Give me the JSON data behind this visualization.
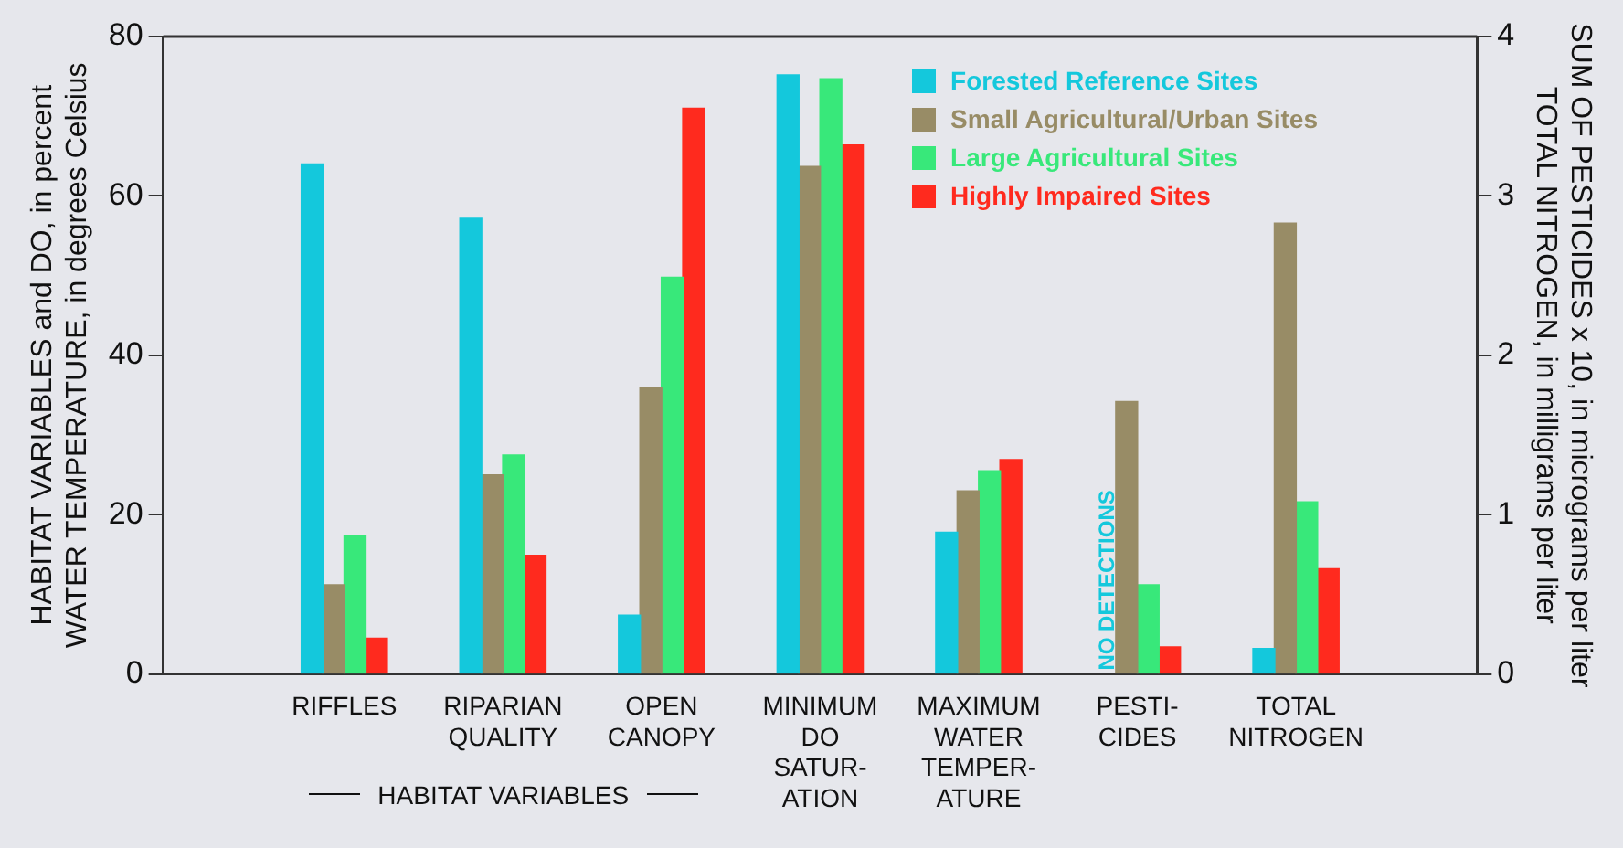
{
  "chart_data": {
    "type": "bar",
    "categories": [
      "RIFFLES",
      "RIPARIAN\nQUALITY",
      "OPEN\nCANOPY",
      "MINIMUM\nDO\nSATUR-\nATION",
      "MAXIMUM\nWATER\nTEMPER-\nATURE",
      "PESTI-\nCIDES",
      "TOTAL\nNITROGEN"
    ],
    "series": [
      {
        "name": "Forested Reference Sites",
        "color": "#14c8dc",
        "values": [
          64,
          57.2,
          7.4,
          75.2,
          17.8,
          null,
          null
        ]
      },
      {
        "name": "Small Agricultural/Urban Sites",
        "color": "#988c66",
        "values": [
          11.2,
          25,
          35.9,
          63.7,
          23,
          null,
          null
        ]
      },
      {
        "name": "Large Agricultural Sites",
        "color": "#38e87a",
        "values": [
          17.4,
          27.5,
          49.8,
          74.7,
          25.5,
          null,
          null
        ]
      },
      {
        "name": "Highly Impaired Sites",
        "color": "#ff2a1e",
        "values": [
          4.5,
          14.9,
          71,
          66.4,
          26.9,
          null,
          null
        ]
      },
      {
        "color": "#14c8dc",
        "axis": "y2",
        "values": [
          null,
          null,
          null,
          null,
          null,
          null,
          0.16
        ]
      },
      {
        "color": "#988c66",
        "axis": "y2",
        "values": [
          null,
          null,
          null,
          null,
          null,
          1.71,
          2.83
        ]
      },
      {
        "color": "#38e87a",
        "axis": "y2",
        "values": [
          null,
          null,
          null,
          null,
          null,
          0.56,
          1.08
        ]
      },
      {
        "color": "#ff2a1e",
        "axis": "y2",
        "values": [
          null,
          null,
          null,
          null,
          null,
          0.17,
          0.66
        ]
      }
    ],
    "ylabel": "HABITAT VARIABLES and DO, in percent\nWATER TEMPERATURE, in degrees Celsius",
    "y2label": "SUM OF PESTICIDES x 10, in micrograms per liter\nTOTAL NITROGEN, in milligrams per liter",
    "ylim": [
      0,
      80
    ],
    "yticks": [
      0,
      20,
      40,
      60,
      80
    ],
    "y2lim": [
      0,
      4
    ],
    "y2ticks": [
      0,
      1,
      2,
      3,
      4
    ],
    "annotations": [
      {
        "text": "NO DETECTIONS",
        "x": "PESTI-\nCIDES",
        "y": 0
      },
      "HABITAT VARIABLES"
    ],
    "legend": "top right",
    "grid": false
  }
}
